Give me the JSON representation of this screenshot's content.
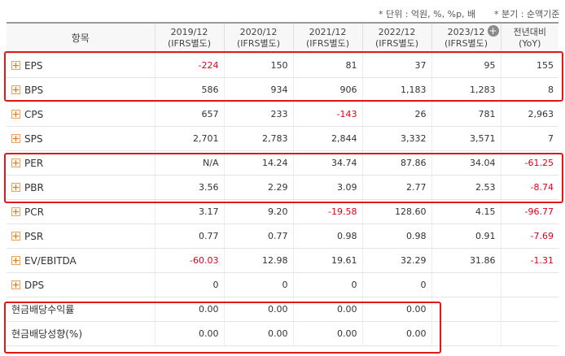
{
  "notes": {
    "unit": "* 단위 : 억원, %, %p, 배",
    "basis": "* 분기 : 순액기준"
  },
  "header": {
    "item": "항목",
    "periods": [
      {
        "year": "2019/12",
        "basis": "(IFRS별도)"
      },
      {
        "year": "2020/12",
        "basis": "(IFRS별도)"
      },
      {
        "year": "2021/12",
        "basis": "(IFRS별도)"
      },
      {
        "year": "2022/12",
        "basis": "(IFRS별도)"
      },
      {
        "year": "2023/12",
        "basis": "(IFRS별도)"
      }
    ],
    "yoy_line1": "전년대비",
    "yoy_line2": "(YoY)",
    "add_column_icon": "plus-circle"
  },
  "rows": [
    {
      "label": "EPS",
      "expandable": true,
      "values": [
        "-224",
        "150",
        "81",
        "37",
        "95",
        "155"
      ]
    },
    {
      "label": "BPS",
      "expandable": true,
      "values": [
        "586",
        "934",
        "906",
        "1,183",
        "1,283",
        "8"
      ]
    },
    {
      "label": "CPS",
      "expandable": true,
      "values": [
        "657",
        "233",
        "-143",
        "26",
        "781",
        "2,963"
      ]
    },
    {
      "label": "SPS",
      "expandable": true,
      "values": [
        "2,701",
        "2,783",
        "2,844",
        "3,332",
        "3,571",
        "7"
      ]
    },
    {
      "label": "PER",
      "expandable": true,
      "values": [
        "N/A",
        "14.24",
        "34.74",
        "87.86",
        "34.04",
        "-61.25"
      ]
    },
    {
      "label": "PBR",
      "expandable": true,
      "values": [
        "3.56",
        "2.29",
        "3.09",
        "2.77",
        "2.53",
        "-8.74"
      ]
    },
    {
      "label": "PCR",
      "expandable": true,
      "values": [
        "3.17",
        "9.20",
        "-19.58",
        "128.60",
        "4.15",
        "-96.77"
      ]
    },
    {
      "label": "PSR",
      "expandable": true,
      "values": [
        "0.77",
        "0.77",
        "0.98",
        "0.98",
        "0.91",
        "-7.69"
      ]
    },
    {
      "label": "EV/EBITDA",
      "expandable": true,
      "values": [
        "-60.03",
        "12.98",
        "19.61",
        "32.29",
        "31.86",
        "-1.31"
      ]
    },
    {
      "label": "DPS",
      "expandable": true,
      "values": [
        "0",
        "0",
        "0",
        "0",
        "",
        ""
      ]
    },
    {
      "label": "현금배당수익률",
      "expandable": false,
      "values": [
        "0.00",
        "0.00",
        "0.00",
        "0.00",
        "",
        ""
      ]
    },
    {
      "label": "현금배당성향(%)",
      "expandable": false,
      "values": [
        "0.00",
        "0.00",
        "0.00",
        "0.00",
        "",
        ""
      ]
    }
  ],
  "colors": {
    "negative": "#e0001b",
    "highlight_box": "#e01a1a",
    "header_bg": "#f7f7f7",
    "expand_icon": "#e0701e"
  }
}
